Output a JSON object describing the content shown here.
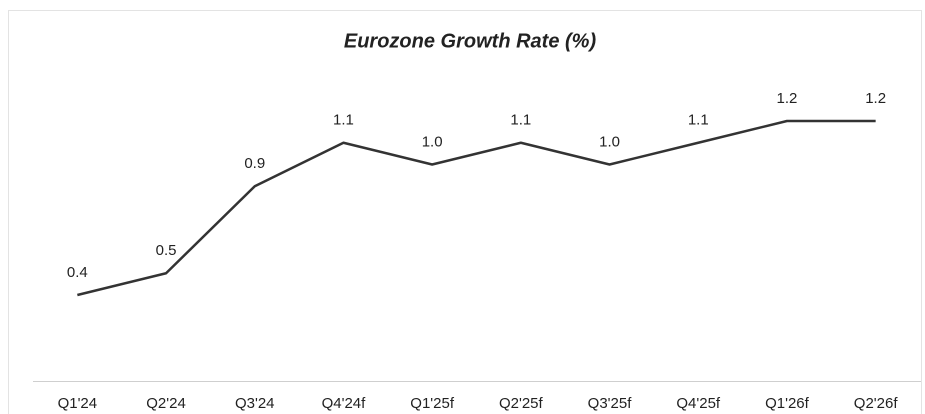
{
  "chart_data": {
    "type": "line",
    "title": "Eurozone Growth Rate (%)",
    "categories": [
      "Q1'24",
      "Q2'24",
      "Q3'24",
      "Q4'24f",
      "Q1'25f",
      "Q2'25f",
      "Q3'25f",
      "Q4'25f",
      "Q1'26f",
      "Q2'26f"
    ],
    "values": [
      0.4,
      0.5,
      0.9,
      1.1,
      1.0,
      1.1,
      1.0,
      1.1,
      1.2,
      1.2
    ],
    "value_labels": [
      "0.4",
      "0.5",
      "0.9",
      "1.1",
      "1.0",
      "1.1",
      "1.0",
      "1.1",
      "1.2",
      "1.2"
    ],
    "color": "#333333",
    "ylim": [
      0,
      1.4
    ]
  }
}
